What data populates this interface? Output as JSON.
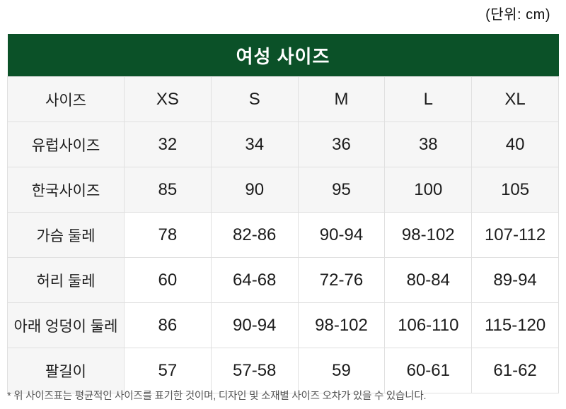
{
  "unit_label": "(단위: cm)",
  "footnote": "* 위 사이즈표는 평균적인 사이즈를 표기한 것이며, 디자인 및 소재별 사이즈 오차가 있을 수 있습니다.",
  "colors": {
    "header_bg": "#0b5128",
    "header_text": "#ffffff",
    "shaded_row_bg": "#f6f6f6",
    "border": "#e0e0e0",
    "text": "#1c1c1c",
    "footnote_text": "#555555"
  },
  "chart_data": {
    "type": "table",
    "title": "여성 사이즈",
    "unit": "cm",
    "rows": [
      {
        "label": "사이즈",
        "values": [
          "XS",
          "S",
          "M",
          "L",
          "XL"
        ],
        "shaded": true
      },
      {
        "label": "유럽사이즈",
        "values": [
          "32",
          "34",
          "36",
          "38",
          "40"
        ],
        "shaded": true
      },
      {
        "label": "한국사이즈",
        "values": [
          "85",
          "90",
          "95",
          "100",
          "105"
        ],
        "shaded": true
      },
      {
        "label": "가슴 둘레",
        "values": [
          "78",
          "82-86",
          "90-94",
          "98-102",
          "107-112"
        ],
        "shaded": false
      },
      {
        "label": "허리 둘레",
        "values": [
          "60",
          "64-68",
          "72-76",
          "80-84",
          "89-94"
        ],
        "shaded": false
      },
      {
        "label": "아래 엉덩이 둘레",
        "values": [
          "86",
          "90-94",
          "98-102",
          "106-110",
          "115-120"
        ],
        "shaded": false
      },
      {
        "label": "팔길이",
        "values": [
          "57",
          "57-58",
          "59",
          "60-61",
          "61-62"
        ],
        "shaded": false
      }
    ]
  }
}
